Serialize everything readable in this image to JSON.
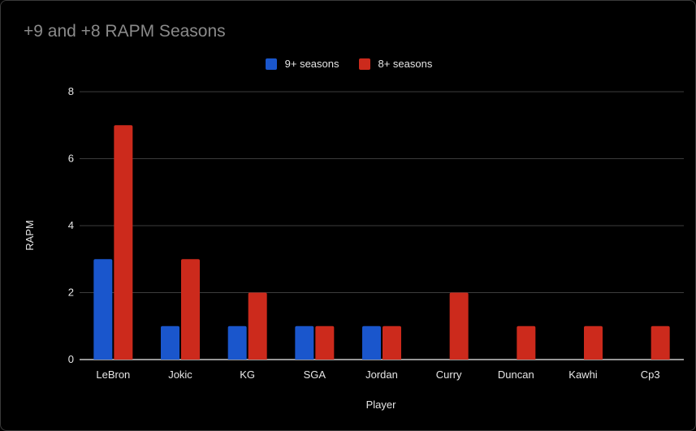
{
  "colors": {
    "background": "#000000",
    "title": "#8a8a8a",
    "text": "#e6e6e6",
    "grid": "#3c3c3c",
    "baseline": "#c8c8c8",
    "series_1": "#1a56cc",
    "series_2": "#cc2a1c"
  },
  "chart_data": {
    "type": "bar",
    "title": "+9 and +8 RAPM Seasons",
    "xlabel": "Player",
    "ylabel": "RAPM",
    "ylim": [
      0,
      8
    ],
    "yticks": [
      0,
      2,
      4,
      6,
      8
    ],
    "grid": true,
    "legend_position": "top-center",
    "categories": [
      "LeBron",
      "Jokic",
      "KG",
      "SGA",
      "Jordan",
      "Curry",
      "Duncan",
      "Kawhi",
      "Cp3"
    ],
    "series": [
      {
        "name": "9+ seasons",
        "color": "#1a56cc",
        "values": [
          3,
          1,
          1,
          1,
          1,
          0,
          0,
          0,
          0
        ]
      },
      {
        "name": "8+ seasons",
        "color": "#cc2a1c",
        "values": [
          7,
          3,
          2,
          1,
          1,
          2,
          1,
          1,
          1
        ]
      }
    ]
  }
}
